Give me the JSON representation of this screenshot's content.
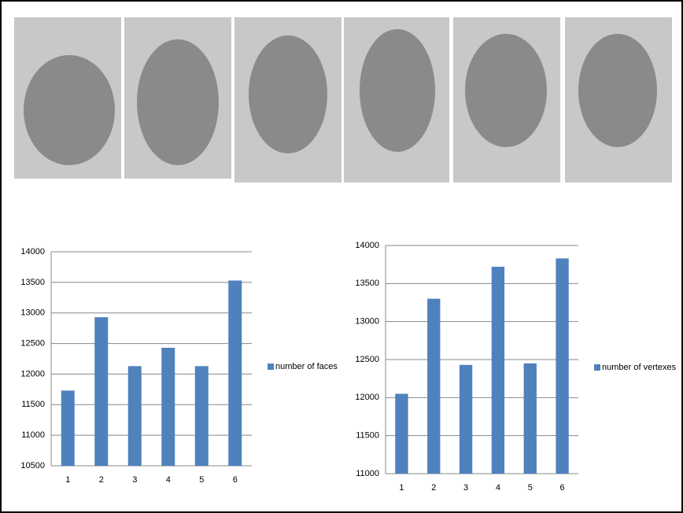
{
  "chart_data": [
    {
      "type": "bar",
      "categories": [
        "1",
        "2",
        "3",
        "4",
        "5",
        "6"
      ],
      "series": [
        {
          "name": "number of faces",
          "color": "#4f81bd",
          "values": [
            11730,
            12930,
            12130,
            12430,
            12130,
            13530
          ]
        }
      ],
      "ylim": [
        10500,
        14000
      ],
      "yticks": [
        10500,
        11000,
        11500,
        12000,
        12500,
        13000,
        13500,
        14000
      ],
      "grid": true
    },
    {
      "type": "bar",
      "categories": [
        "1",
        "2",
        "3",
        "4",
        "5",
        "6"
      ],
      "series": [
        {
          "name": "number of vertexes",
          "color": "#4f81bd",
          "values": [
            12050,
            13300,
            12430,
            13720,
            12450,
            13830
          ]
        }
      ],
      "ylim": [
        11000,
        14000
      ],
      "yticks": [
        11000,
        11500,
        12000,
        12500,
        13000,
        13500,
        14000
      ],
      "grid": true
    }
  ]
}
